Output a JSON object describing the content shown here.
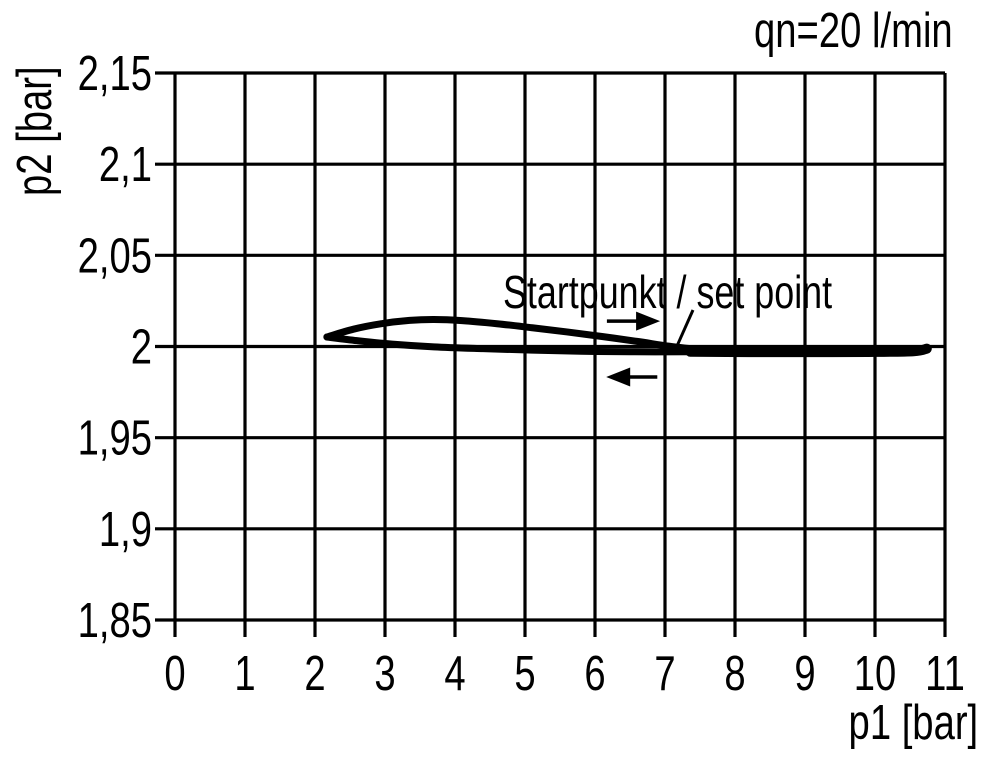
{
  "figure": {
    "background": "#ffffff",
    "ink_color": "#000000"
  },
  "chart_data": {
    "type": "line",
    "title": "qn=20 l/min",
    "xlabel": "p1 [bar]",
    "ylabel": "p2 [bar]",
    "xlim": [
      0,
      11
    ],
    "ylim": [
      1.85,
      2.15
    ],
    "grid": true,
    "legend": "none",
    "x_ticks": {
      "values": [
        0,
        1,
        2,
        3,
        4,
        5,
        6,
        7,
        8,
        9,
        10,
        11
      ],
      "labels": [
        "0",
        "1",
        "2",
        "3",
        "4",
        "5",
        "6",
        "7",
        "8",
        "9",
        "10",
        "11"
      ]
    },
    "y_ticks": {
      "values": [
        2.15,
        2.1,
        2.05,
        2.0,
        1.95,
        1.9,
        1.85
      ],
      "labels": [
        "2,15",
        "2,1",
        "2,05",
        "2",
        "1,95",
        "1,9",
        "1,85"
      ]
    },
    "series": [
      {
        "name": "upper-branch-p1-decreasing-bump",
        "x": [
          2.17,
          2.55,
          2.95,
          3.35,
          3.7,
          4.1,
          4.6,
          5.1,
          5.6,
          6.1,
          6.6,
          7.05,
          7.36
        ],
        "y": [
          2.0052,
          2.0095,
          2.0125,
          2.0143,
          2.0148,
          2.0142,
          2.0125,
          2.0103,
          2.008,
          2.0055,
          2.0028,
          2.0002,
          1.9988
        ]
      },
      {
        "name": "lower-branch-return",
        "x": [
          2.17,
          2.6,
          3.1,
          3.7,
          4.4,
          5.1,
          5.8,
          6.5,
          7.36
        ],
        "y": [
          2.0052,
          2.0032,
          2.0013,
          1.9998,
          1.9988,
          1.998,
          1.9974,
          1.9971,
          1.9971
        ]
      },
      {
        "name": "high-pressure-flat-segment",
        "x": [
          7.36,
          8.2,
          9.0,
          9.9,
          10.55,
          10.74
        ],
        "y": [
          1.9971,
          1.9969,
          1.9969,
          1.997,
          1.9974,
          1.9988
        ]
      }
    ],
    "annotations": {
      "setpoint": {
        "text": "Startpunkt / set point",
        "leader_from": [
          7.4,
          2.02
        ],
        "leader_to": [
          7.18,
          2.001
        ]
      },
      "arrows": [
        {
          "direction": "right",
          "from": [
            6.17,
            2.0139
          ],
          "to": [
            6.93,
            2.0139
          ]
        },
        {
          "direction": "left",
          "from": [
            6.89,
            1.9833
          ],
          "to": [
            6.16,
            1.9833
          ]
        }
      ]
    }
  }
}
